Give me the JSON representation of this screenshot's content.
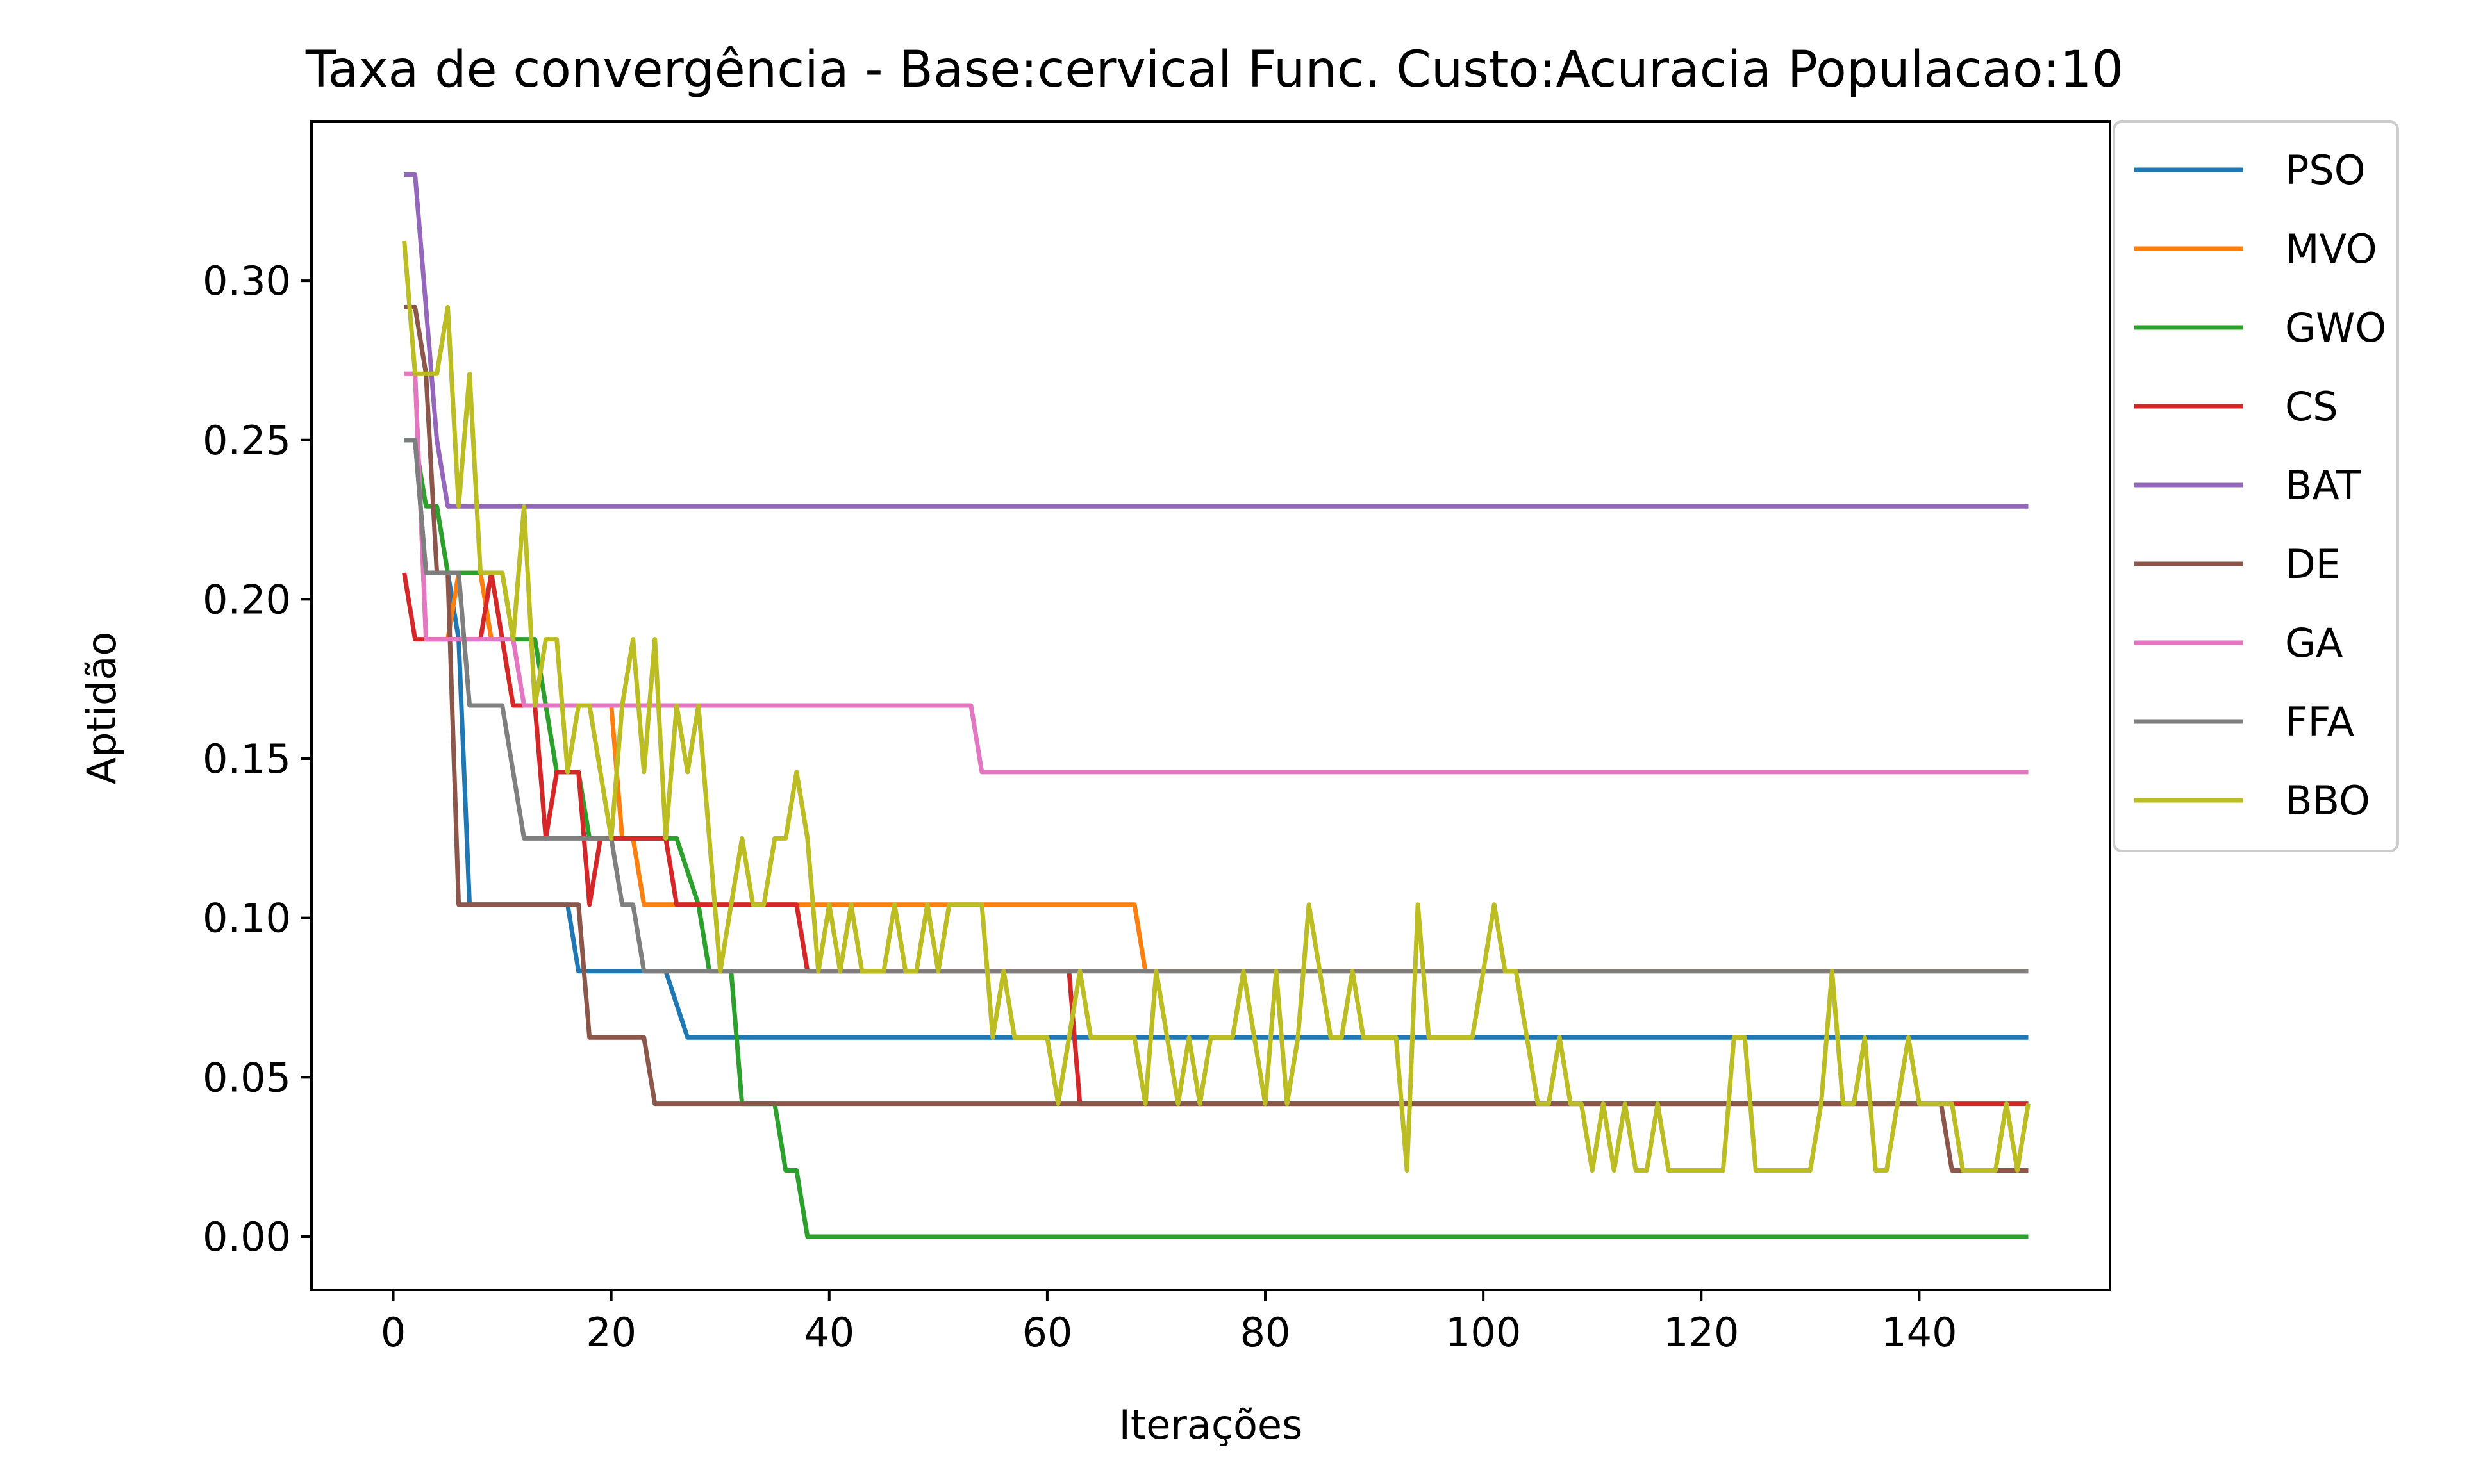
{
  "chart_data": {
    "type": "line",
    "title": "Taxa de convergência - Base:cervical Func. Custo:Acuracia Populacao:10",
    "xlabel": "Iterações",
    "ylabel": "Aptidão",
    "xlim": [
      -7.5,
      157.5
    ],
    "ylim": [
      -0.0167,
      0.3499
    ],
    "x_ticks": [
      0,
      20,
      40,
      60,
      80,
      100,
      120,
      140
    ],
    "x_tick_labels": [
      "0",
      "20",
      "40",
      "60",
      "80",
      "100",
      "120",
      "140"
    ],
    "y_ticks": [
      0.0,
      0.05,
      0.1,
      0.15,
      0.2,
      0.25,
      0.3
    ],
    "y_tick_labels": [
      "0.00",
      "0.05",
      "0.10",
      "0.15",
      "0.20",
      "0.25",
      "0.30"
    ],
    "grid": false,
    "legend_position": "outside-top-right",
    "series": [
      {
        "name": "PSO",
        "color": "#1f77b4",
        "points": [
          [
            1,
            0.25
          ],
          [
            2,
            0.25
          ],
          [
            3,
            0.2083
          ],
          [
            5,
            0.2083
          ],
          [
            6,
            0.1875
          ],
          [
            7,
            0.1042
          ],
          [
            16,
            0.1042
          ],
          [
            17,
            0.0833
          ],
          [
            25,
            0.0833
          ],
          [
            27,
            0.0625
          ],
          [
            150,
            0.0625
          ]
        ]
      },
      {
        "name": "MVO",
        "color": "#ff7f0e",
        "points": [
          [
            1,
            0.2708
          ],
          [
            2,
            0.2708
          ],
          [
            3,
            0.1875
          ],
          [
            5,
            0.1875
          ],
          [
            6,
            0.2083
          ],
          [
            8,
            0.2083
          ],
          [
            9,
            0.1875
          ],
          [
            10,
            0.1875
          ],
          [
            11,
            0.1667
          ],
          [
            20,
            0.1667
          ],
          [
            21,
            0.125
          ],
          [
            22,
            0.125
          ],
          [
            23,
            0.1042
          ],
          [
            68,
            0.1042
          ],
          [
            69,
            0.0833
          ],
          [
            150,
            0.0833
          ]
        ]
      },
      {
        "name": "GWO",
        "color": "#2ca02c",
        "points": [
          [
            1,
            0.25
          ],
          [
            2,
            0.25
          ],
          [
            3,
            0.2292
          ],
          [
            4,
            0.2292
          ],
          [
            5,
            0.2083
          ],
          [
            10,
            0.2083
          ],
          [
            11,
            0.1875
          ],
          [
            13,
            0.1875
          ],
          [
            14,
            0.1667
          ],
          [
            15,
            0.1458
          ],
          [
            17,
            0.1458
          ],
          [
            18,
            0.125
          ],
          [
            26,
            0.125
          ],
          [
            28,
            0.1042
          ],
          [
            29,
            0.0833
          ],
          [
            31,
            0.0833
          ],
          [
            32,
            0.0417
          ],
          [
            35,
            0.0417
          ],
          [
            36,
            0.0208
          ],
          [
            37,
            0.0208
          ],
          [
            38,
            0.0
          ],
          [
            150,
            0.0
          ]
        ]
      },
      {
        "name": "CS",
        "color": "#d62728",
        "points": [
          [
            1,
            0.2083
          ],
          [
            2,
            0.1875
          ],
          [
            8,
            0.1875
          ],
          [
            9,
            0.2083
          ],
          [
            10,
            0.1875
          ],
          [
            11,
            0.1667
          ],
          [
            13,
            0.1667
          ],
          [
            14,
            0.125
          ],
          [
            15,
            0.1458
          ],
          [
            17,
            0.1458
          ],
          [
            18,
            0.1042
          ],
          [
            19,
            0.125
          ],
          [
            25,
            0.125
          ],
          [
            26,
            0.1042
          ],
          [
            37,
            0.1042
          ],
          [
            38,
            0.0833
          ],
          [
            62,
            0.0833
          ],
          [
            63,
            0.0417
          ],
          [
            150,
            0.0417
          ]
        ]
      },
      {
        "name": "BAT",
        "color": "#9467bd",
        "points": [
          [
            1,
            0.3333
          ],
          [
            2,
            0.3333
          ],
          [
            3,
            0.2917
          ],
          [
            4,
            0.25
          ],
          [
            5,
            0.2292
          ],
          [
            150,
            0.2292
          ]
        ]
      },
      {
        "name": "DE",
        "color": "#8c564b",
        "points": [
          [
            1,
            0.2917
          ],
          [
            2,
            0.2917
          ],
          [
            3,
            0.2708
          ],
          [
            4,
            0.2083
          ],
          [
            5,
            0.2083
          ],
          [
            6,
            0.1042
          ],
          [
            17,
            0.1042
          ],
          [
            18,
            0.0625
          ],
          [
            23,
            0.0625
          ],
          [
            24,
            0.0417
          ],
          [
            142,
            0.0417
          ],
          [
            143,
            0.0208
          ],
          [
            150,
            0.0208
          ]
        ]
      },
      {
        "name": "GA",
        "color": "#e377c2",
        "points": [
          [
            1,
            0.2708
          ],
          [
            2,
            0.2708
          ],
          [
            3,
            0.1875
          ],
          [
            11,
            0.1875
          ],
          [
            12,
            0.1667
          ],
          [
            53,
            0.1667
          ],
          [
            54,
            0.1458
          ],
          [
            150,
            0.1458
          ]
        ]
      },
      {
        "name": "FFA",
        "color": "#7f7f7f",
        "points": [
          [
            1,
            0.25
          ],
          [
            2,
            0.25
          ],
          [
            3,
            0.2083
          ],
          [
            6,
            0.2083
          ],
          [
            7,
            0.1667
          ],
          [
            9,
            0.1667
          ],
          [
            10,
            0.1667
          ],
          [
            12,
            0.125
          ],
          [
            20,
            0.125
          ],
          [
            21,
            0.1042
          ],
          [
            22,
            0.1042
          ],
          [
            23,
            0.0833
          ],
          [
            150,
            0.0833
          ]
        ]
      },
      {
        "name": "BBO",
        "color": "#bcbd22",
        "points": [
          [
            1,
            0.3125
          ],
          [
            2,
            0.2708
          ],
          [
            3,
            0.2708
          ],
          [
            4,
            0.2708
          ],
          [
            5,
            0.2917
          ],
          [
            6,
            0.2292
          ],
          [
            7,
            0.2708
          ],
          [
            8,
            0.2083
          ],
          [
            9,
            0.2083
          ],
          [
            10,
            0.2083
          ],
          [
            11,
            0.1875
          ],
          [
            12,
            0.2292
          ],
          [
            13,
            0.1667
          ],
          [
            14,
            0.1875
          ],
          [
            15,
            0.1875
          ],
          [
            16,
            0.1458
          ],
          [
            17,
            0.1667
          ],
          [
            18,
            0.1667
          ],
          [
            19,
            0.1458
          ],
          [
            20,
            0.125
          ],
          [
            21,
            0.1667
          ],
          [
            22,
            0.1875
          ],
          [
            23,
            0.1458
          ],
          [
            24,
            0.1875
          ],
          [
            25,
            0.125
          ],
          [
            26,
            0.1667
          ],
          [
            27,
            0.1458
          ],
          [
            28,
            0.1667
          ],
          [
            29,
            0.125
          ],
          [
            30,
            0.0833
          ],
          [
            31,
            0.1042
          ],
          [
            32,
            0.125
          ],
          [
            33,
            0.1042
          ],
          [
            34,
            0.1042
          ],
          [
            35,
            0.125
          ],
          [
            36,
            0.125
          ],
          [
            37,
            0.1458
          ],
          [
            38,
            0.125
          ],
          [
            39,
            0.0833
          ],
          [
            40,
            0.1042
          ],
          [
            41,
            0.0833
          ],
          [
            42,
            0.1042
          ],
          [
            43,
            0.0833
          ],
          [
            44,
            0.0833
          ],
          [
            45,
            0.0833
          ],
          [
            46,
            0.1042
          ],
          [
            47,
            0.0833
          ],
          [
            48,
            0.0833
          ],
          [
            49,
            0.1042
          ],
          [
            50,
            0.0833
          ],
          [
            51,
            0.1042
          ],
          [
            52,
            0.1042
          ],
          [
            53,
            0.1042
          ],
          [
            54,
            0.1042
          ],
          [
            55,
            0.0625
          ],
          [
            56,
            0.0833
          ],
          [
            57,
            0.0625
          ],
          [
            58,
            0.0625
          ],
          [
            59,
            0.0625
          ],
          [
            60,
            0.0625
          ],
          [
            61,
            0.0417
          ],
          [
            62,
            0.0625
          ],
          [
            63,
            0.0833
          ],
          [
            64,
            0.0625
          ],
          [
            65,
            0.0625
          ],
          [
            66,
            0.0625
          ],
          [
            67,
            0.0625
          ],
          [
            68,
            0.0625
          ],
          [
            69,
            0.0417
          ],
          [
            70,
            0.0833
          ],
          [
            71,
            0.0625
          ],
          [
            72,
            0.0417
          ],
          [
            73,
            0.0625
          ],
          [
            74,
            0.0417
          ],
          [
            75,
            0.0625
          ],
          [
            76,
            0.0625
          ],
          [
            77,
            0.0625
          ],
          [
            78,
            0.0833
          ],
          [
            79,
            0.0625
          ],
          [
            80,
            0.0417
          ],
          [
            81,
            0.0833
          ],
          [
            82,
            0.0417
          ],
          [
            83,
            0.0625
          ],
          [
            84,
            0.1042
          ],
          [
            85,
            0.0833
          ],
          [
            86,
            0.0625
          ],
          [
            87,
            0.0625
          ],
          [
            88,
            0.0833
          ],
          [
            89,
            0.0625
          ],
          [
            90,
            0.0625
          ],
          [
            91,
            0.0625
          ],
          [
            92,
            0.0625
          ],
          [
            93,
            0.0208
          ],
          [
            94,
            0.1042
          ],
          [
            95,
            0.0625
          ],
          [
            96,
            0.0625
          ],
          [
            97,
            0.0625
          ],
          [
            98,
            0.0625
          ],
          [
            99,
            0.0625
          ],
          [
            100,
            0.0833
          ],
          [
            101,
            0.1042
          ],
          [
            102,
            0.0833
          ],
          [
            103,
            0.0833
          ],
          [
            104,
            0.0625
          ],
          [
            105,
            0.0417
          ],
          [
            106,
            0.0417
          ],
          [
            107,
            0.0625
          ],
          [
            108,
            0.0417
          ],
          [
            109,
            0.0417
          ],
          [
            110,
            0.0208
          ],
          [
            111,
            0.0417
          ],
          [
            112,
            0.0208
          ],
          [
            113,
            0.0417
          ],
          [
            114,
            0.0208
          ],
          [
            115,
            0.0208
          ],
          [
            116,
            0.0417
          ],
          [
            117,
            0.0208
          ],
          [
            118,
            0.0208
          ],
          [
            119,
            0.0208
          ],
          [
            120,
            0.0208
          ],
          [
            121,
            0.0208
          ],
          [
            122,
            0.0208
          ],
          [
            123,
            0.0625
          ],
          [
            124,
            0.0625
          ],
          [
            125,
            0.0208
          ],
          [
            126,
            0.0208
          ],
          [
            127,
            0.0208
          ],
          [
            128,
            0.0208
          ],
          [
            129,
            0.0208
          ],
          [
            130,
            0.0208
          ],
          [
            131,
            0.0417
          ],
          [
            132,
            0.0833
          ],
          [
            133,
            0.0417
          ],
          [
            134,
            0.0417
          ],
          [
            135,
            0.0625
          ],
          [
            136,
            0.0208
          ],
          [
            137,
            0.0208
          ],
          [
            138,
            0.0417
          ],
          [
            139,
            0.0625
          ],
          [
            140,
            0.0417
          ],
          [
            141,
            0.0417
          ],
          [
            142,
            0.0417
          ],
          [
            143,
            0.0417
          ],
          [
            144,
            0.0208
          ],
          [
            145,
            0.0208
          ],
          [
            146,
            0.0208
          ],
          [
            147,
            0.0208
          ],
          [
            148,
            0.0417
          ],
          [
            149,
            0.0208
          ],
          [
            150,
            0.0417
          ]
        ]
      }
    ]
  }
}
